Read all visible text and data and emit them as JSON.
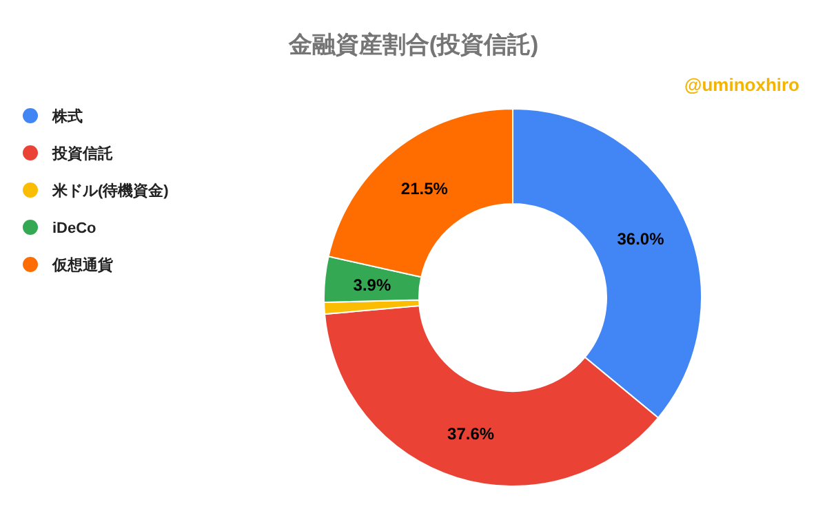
{
  "chart_data": {
    "type": "donut",
    "title": "金融資産割合(投資信託)",
    "categories": [
      "株式",
      "投資信託",
      "米ドル(待機資金)",
      "iDeCo",
      "仮想通貨"
    ],
    "values": [
      36.0,
      37.6,
      1.0,
      3.9,
      21.5
    ],
    "colors": [
      "#4285f4",
      "#ea4335",
      "#fbbc04",
      "#34a853",
      "#ff6d01"
    ],
    "value_labels": [
      "36.0%",
      "37.6%",
      null,
      "3.9%",
      "21.5%"
    ],
    "annotations": [
      "@uminoxhiro"
    ],
    "legend": "left"
  }
}
